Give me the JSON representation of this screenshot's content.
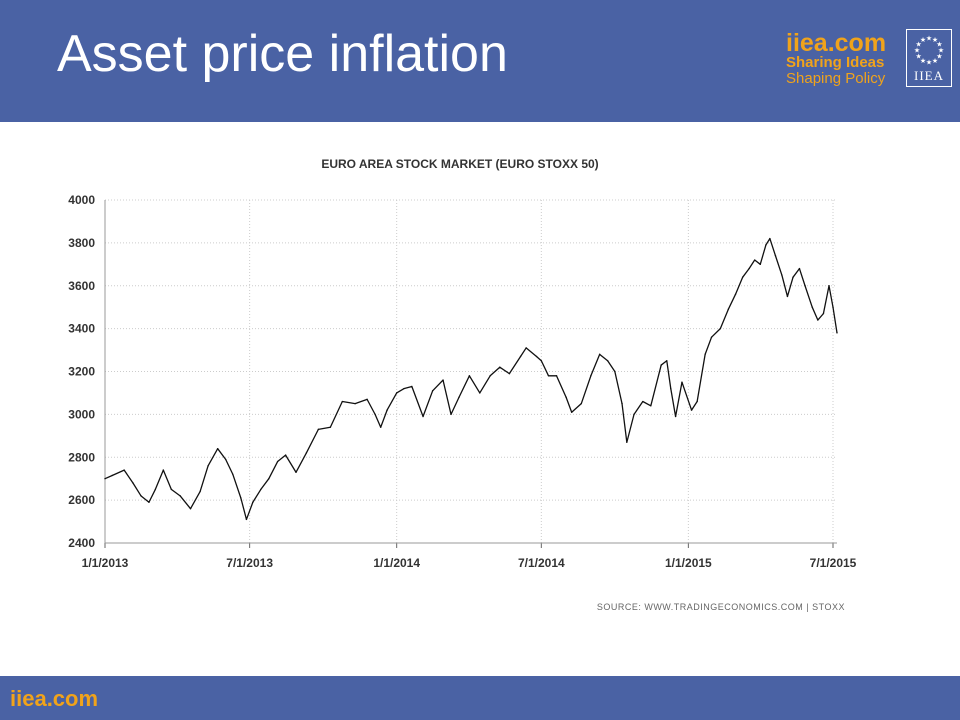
{
  "slide": {
    "title": "Asset price inflation"
  },
  "logo": {
    "domain": "iiea.com",
    "line1": "Sharing Ideas",
    "line2": "Shaping Policy",
    "emblem_text": "IIEA"
  },
  "footer": {
    "text": "iiea.com"
  },
  "colors": {
    "header": "#4a62a4",
    "accent": "#f0a31b",
    "line": "#111111",
    "grid": "#cccccc"
  },
  "chart_data": {
    "type": "line",
    "title": "EURO AREA STOCK MARKET (EURO STOXX 50)",
    "source": "SOURCE: WWW.TRADINGECONOMICS.COM  |  STOXX",
    "xlabel": "",
    "ylabel": "",
    "ylim": [
      2400,
      4000
    ],
    "yticks": [
      2400,
      2600,
      2800,
      3000,
      3200,
      3400,
      3600,
      3800,
      4000
    ],
    "xlim": [
      "2013-01-01",
      "2015-07-06"
    ],
    "xticks": [
      {
        "date": "2013-01-01",
        "label": "1/1/2013"
      },
      {
        "date": "2013-07-01",
        "label": "7/1/2013"
      },
      {
        "date": "2014-01-01",
        "label": "1/1/2014"
      },
      {
        "date": "2014-07-01",
        "label": "7/1/2014"
      },
      {
        "date": "2015-01-01",
        "label": "1/1/2015"
      },
      {
        "date": "2015-07-01",
        "label": "7/1/2015"
      }
    ],
    "grid": true,
    "series": [
      {
        "points": [
          [
            "2013-01-01",
            2700
          ],
          [
            "2013-01-10",
            2715
          ],
          [
            "2013-01-25",
            2740
          ],
          [
            "2013-02-05",
            2680
          ],
          [
            "2013-02-15",
            2620
          ],
          [
            "2013-02-25",
            2590
          ],
          [
            "2013-03-05",
            2650
          ],
          [
            "2013-03-15",
            2740
          ],
          [
            "2013-03-25",
            2650
          ],
          [
            "2013-04-05",
            2620
          ],
          [
            "2013-04-18",
            2560
          ],
          [
            "2013-04-30",
            2640
          ],
          [
            "2013-05-10",
            2760
          ],
          [
            "2013-05-22",
            2840
          ],
          [
            "2013-06-01",
            2790
          ],
          [
            "2013-06-10",
            2720
          ],
          [
            "2013-06-20",
            2610
          ],
          [
            "2013-06-27",
            2510
          ],
          [
            "2013-07-05",
            2590
          ],
          [
            "2013-07-15",
            2650
          ],
          [
            "2013-07-25",
            2700
          ],
          [
            "2013-08-05",
            2780
          ],
          [
            "2013-08-15",
            2810
          ],
          [
            "2013-08-28",
            2730
          ],
          [
            "2013-09-10",
            2820
          ],
          [
            "2013-09-25",
            2930
          ],
          [
            "2013-10-10",
            2940
          ],
          [
            "2013-10-25",
            3060
          ],
          [
            "2013-11-10",
            3050
          ],
          [
            "2013-11-25",
            3070
          ],
          [
            "2013-12-05",
            3000
          ],
          [
            "2013-12-12",
            2940
          ],
          [
            "2013-12-20",
            3020
          ],
          [
            "2014-01-01",
            3100
          ],
          [
            "2014-01-10",
            3120
          ],
          [
            "2014-01-20",
            3130
          ],
          [
            "2014-02-03",
            2990
          ],
          [
            "2014-02-15",
            3110
          ],
          [
            "2014-02-28",
            3160
          ],
          [
            "2014-03-10",
            3000
          ],
          [
            "2014-03-20",
            3080
          ],
          [
            "2014-04-02",
            3180
          ],
          [
            "2014-04-15",
            3100
          ],
          [
            "2014-04-28",
            3180
          ],
          [
            "2014-05-10",
            3220
          ],
          [
            "2014-05-22",
            3190
          ],
          [
            "2014-06-05",
            3270
          ],
          [
            "2014-06-12",
            3310
          ],
          [
            "2014-06-25",
            3270
          ],
          [
            "2014-07-01",
            3250
          ],
          [
            "2014-07-10",
            3180
          ],
          [
            "2014-07-20",
            3180
          ],
          [
            "2014-08-01",
            3080
          ],
          [
            "2014-08-08",
            3010
          ],
          [
            "2014-08-20",
            3050
          ],
          [
            "2014-09-01",
            3180
          ],
          [
            "2014-09-12",
            3280
          ],
          [
            "2014-09-22",
            3250
          ],
          [
            "2014-10-01",
            3200
          ],
          [
            "2014-10-10",
            3050
          ],
          [
            "2014-10-16",
            2870
          ],
          [
            "2014-10-25",
            3000
          ],
          [
            "2014-11-05",
            3060
          ],
          [
            "2014-11-15",
            3040
          ],
          [
            "2014-11-28",
            3230
          ],
          [
            "2014-12-05",
            3250
          ],
          [
            "2014-12-10",
            3120
          ],
          [
            "2014-12-16",
            2990
          ],
          [
            "2014-12-24",
            3150
          ],
          [
            "2015-01-05",
            3020
          ],
          [
            "2015-01-12",
            3060
          ],
          [
            "2015-01-22",
            3280
          ],
          [
            "2015-01-30",
            3360
          ],
          [
            "2015-02-10",
            3400
          ],
          [
            "2015-02-20",
            3490
          ],
          [
            "2015-03-01",
            3560
          ],
          [
            "2015-03-10",
            3640
          ],
          [
            "2015-03-18",
            3680
          ],
          [
            "2015-03-25",
            3720
          ],
          [
            "2015-04-01",
            3700
          ],
          [
            "2015-04-08",
            3790
          ],
          [
            "2015-04-13",
            3820
          ],
          [
            "2015-04-20",
            3740
          ],
          [
            "2015-04-28",
            3650
          ],
          [
            "2015-05-05",
            3550
          ],
          [
            "2015-05-12",
            3640
          ],
          [
            "2015-05-20",
            3680
          ],
          [
            "2015-05-27",
            3600
          ],
          [
            "2015-06-05",
            3500
          ],
          [
            "2015-06-12",
            3440
          ],
          [
            "2015-06-19",
            3470
          ],
          [
            "2015-06-26",
            3600
          ],
          [
            "2015-07-01",
            3500
          ],
          [
            "2015-07-06",
            3380
          ]
        ]
      }
    ]
  }
}
